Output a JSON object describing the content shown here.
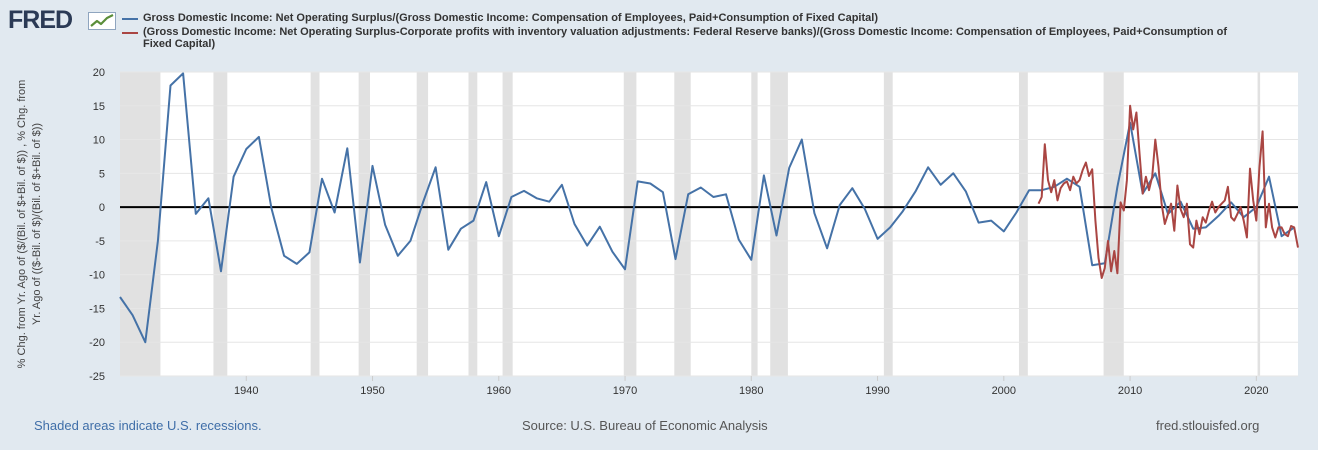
{
  "brand": {
    "name": "FRED"
  },
  "legend": [
    {
      "label": "Gross Domestic Income: Net Operating Surplus/(Gross Domestic Income: Compensation of Employees, Paid+Consumption of Fixed Capital)",
      "color": "#4572a7"
    },
    {
      "label": "(Gross Domestic Income: Net Operating Surplus-Corporate profits with inventory valuation adjustments: Federal Reserve banks)/(Gross Domestic Income: Compensation of Employees, Paid+Consumption of Fixed Capital)",
      "color": "#aa4643"
    }
  ],
  "footer": {
    "recession_note": "Shaded areas indicate U.S. recessions.",
    "source": "Source: U.S. Bureau of Economic Analysis",
    "website": "fred.stlouisfed.org"
  },
  "chart_data": {
    "type": "line",
    "ylabel_lines": [
      "% Chg. from Yr. Ago of ($/(Bil. of $+Bil. of $)) , % Chg. from",
      "Yr. Ago of (($-Bil. of $)/(Bil. of $+Bil. of $))"
    ],
    "xlim": [
      1930,
      2023.3
    ],
    "ylim": [
      -25,
      20
    ],
    "x_ticks": [
      1940,
      1950,
      1960,
      1970,
      1980,
      1990,
      2000,
      2010,
      2020
    ],
    "y_ticks": [
      -25,
      -20,
      -15,
      -10,
      -5,
      0,
      5,
      10,
      15,
      20
    ],
    "grid": "horizontal",
    "zero_line": true,
    "recessions": [
      [
        1929.6,
        1933.2
      ],
      [
        1937.4,
        1938.5
      ],
      [
        1945.1,
        1945.8
      ],
      [
        1948.9,
        1949.8
      ],
      [
        1953.5,
        1954.4
      ],
      [
        1957.6,
        1958.3
      ],
      [
        1960.3,
        1961.1
      ],
      [
        1969.9,
        1970.9
      ],
      [
        1973.9,
        1975.2
      ],
      [
        1980.0,
        1980.5
      ],
      [
        1981.5,
        1982.9
      ],
      [
        1990.5,
        1991.2
      ],
      [
        2001.2,
        2001.9
      ],
      [
        2007.9,
        2009.5
      ],
      [
        2020.1,
        2020.3
      ]
    ],
    "series": [
      {
        "name": "Gross Domestic Income: Net Operating Surplus/(Gross Domestic Income: Compensation of Employees, Paid+Consumption of Fixed Capital)",
        "color": "#4572a7",
        "x": [
          1930,
          1931,
          1932,
          1933,
          1934,
          1935,
          1936,
          1937,
          1938,
          1939,
          1940,
          1941,
          1942,
          1943,
          1944,
          1945,
          1946,
          1947,
          1948,
          1949,
          1950,
          1951,
          1952,
          1953,
          1954,
          1955,
          1956,
          1957,
          1958,
          1959,
          1960,
          1961,
          1962,
          1963,
          1964,
          1965,
          1966,
          1967,
          1968,
          1969,
          1970,
          1971,
          1972,
          1973,
          1974,
          1975,
          1976,
          1977,
          1978,
          1979,
          1980,
          1981,
          1982,
          1983,
          1984,
          1985,
          1986,
          1987,
          1988,
          1989,
          1990,
          1991,
          1992,
          1993,
          1994,
          1995,
          1996,
          1997,
          1998,
          1999,
          2000,
          2001,
          2002,
          2003,
          2004,
          2005,
          2006,
          2007,
          2008,
          2009,
          2010,
          2011,
          2012,
          2013,
          2014,
          2015,
          2016,
          2017,
          2018,
          2019,
          2020,
          2021,
          2022,
          2023
        ],
        "y": [
          -13.3,
          -16,
          -20,
          -5,
          18,
          19.8,
          -1,
          1.3,
          -9.5,
          4.5,
          8.6,
          10.4,
          -0.2,
          -7.2,
          -8.4,
          -6.7,
          4.2,
          -0.8,
          8.7,
          -8.2,
          6.1,
          -2.6,
          -7.2,
          -5,
          0.7,
          5.9,
          -6.3,
          -3.2,
          -2,
          3.7,
          -4.3,
          1.5,
          2.4,
          1.3,
          0.8,
          3.3,
          -2.5,
          -5.7,
          -2.9,
          -6.6,
          -9.2,
          3.8,
          3.5,
          2.2,
          -7.7,
          1.9,
          2.9,
          1.5,
          1.9,
          -4.8,
          -7.8,
          4.7,
          -4.2,
          5.8,
          10,
          -0.9,
          -6.1,
          0.3,
          2.8,
          -0.3,
          -4.7,
          -3,
          -0.6,
          2.3,
          5.9,
          3.3,
          5,
          2.3,
          -2.3,
          -2,
          -3.6,
          -0.8,
          2.5,
          2.5,
          3,
          4.2,
          3,
          -8.6,
          -8.3,
          3,
          12.5,
          2,
          5,
          -1,
          0.8,
          -3.2,
          -3,
          -1.3,
          0.7,
          -1.5,
          0,
          4.5,
          -4.3,
          -3
        ]
      },
      {
        "name": "(Gross Domestic Income: Net Operating Surplus-Corporate profits with inventory valuation adjustments: Federal Reserve banks)/(Gross Domestic Income: Compensation of Employees, Paid+Consumption of Fixed Capital)",
        "color": "#aa4643",
        "x": [
          2002.75,
          2003,
          2003.25,
          2003.5,
          2003.75,
          2004,
          2004.25,
          2004.5,
          2004.75,
          2005,
          2005.25,
          2005.5,
          2005.75,
          2006,
          2006.25,
          2006.5,
          2006.75,
          2007,
          2007.25,
          2007.5,
          2007.75,
          2008,
          2008.25,
          2008.5,
          2008.75,
          2009,
          2009.25,
          2009.5,
          2009.75,
          2010,
          2010.25,
          2010.5,
          2010.75,
          2011,
          2011.25,
          2011.5,
          2011.75,
          2012,
          2012.25,
          2012.5,
          2012.75,
          2013,
          2013.25,
          2013.5,
          2013.75,
          2014,
          2014.25,
          2014.5,
          2014.75,
          2015,
          2015.25,
          2015.5,
          2015.75,
          2016,
          2016.25,
          2016.5,
          2016.75,
          2017,
          2017.25,
          2017.5,
          2017.75,
          2018,
          2018.25,
          2018.5,
          2018.75,
          2019,
          2019.25,
          2019.5,
          2019.75,
          2020,
          2020.25,
          2020.5,
          2020.75,
          2021,
          2021.25,
          2021.5,
          2021.75,
          2022,
          2022.25,
          2022.5,
          2022.75,
          2023,
          2023.3
        ],
        "y": [
          0.5,
          1.5,
          9.3,
          4,
          2.2,
          4,
          1,
          2.8,
          3.5,
          3.8,
          2.5,
          4.5,
          3.5,
          4,
          5.5,
          6.6,
          4.6,
          5.6,
          -2,
          -7.5,
          -10.5,
          -9,
          -5,
          -9.5,
          -6.5,
          -9.8,
          0.7,
          -0.5,
          4,
          15,
          11.5,
          14,
          8,
          2,
          4.5,
          2.5,
          4.5,
          10,
          6,
          0.5,
          -2.5,
          -1,
          0.5,
          -3.5,
          3.2,
          -0.3,
          -1.5,
          0.5,
          -5.5,
          -6,
          -2,
          -4,
          -1.5,
          -2.3,
          -0.5,
          0.8,
          -0.8,
          0,
          0.5,
          1,
          3,
          -1.5,
          -2,
          -1,
          0,
          -2,
          -4.5,
          5.7,
          1,
          -2,
          6,
          11.2,
          -3,
          0.5,
          -3,
          -4.5,
          -3,
          -3,
          -4,
          -4.3,
          -2.8,
          -3,
          -6
        ]
      }
    ]
  }
}
